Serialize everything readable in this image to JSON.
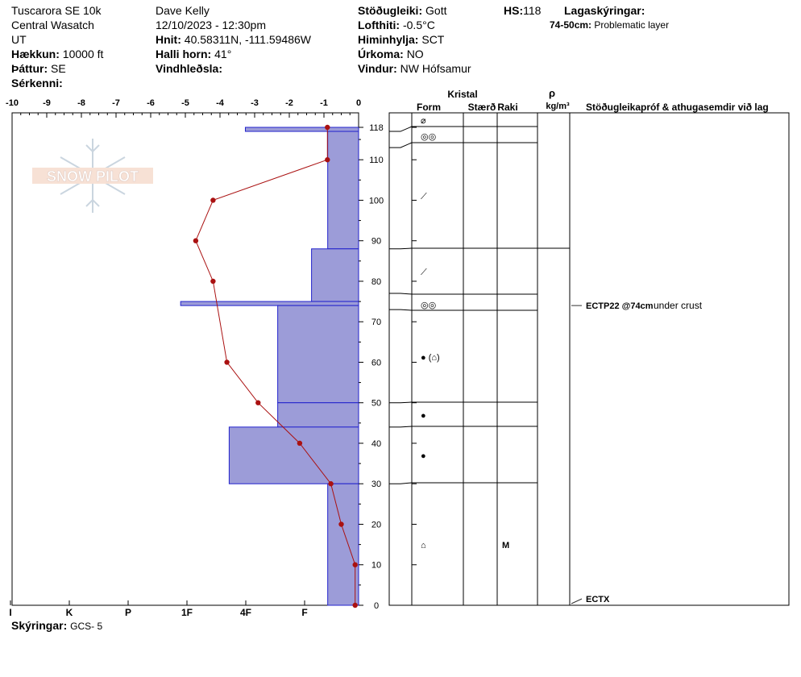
{
  "header": {
    "location": "Tuscarora SE 10k",
    "range": "Central Wasatch",
    "state": "UT",
    "elevation_label": "Hækkun:",
    "elevation": "10000 ft",
    "aspect_label": "Þáttur:",
    "aspect": "SE",
    "features_label": "Sérkenni:",
    "observer": "Dave Kelly",
    "datetime": "12/10/2023 - 12:30pm",
    "coords_label": "Hnit:",
    "coords": "40.58311N, -111.59486W",
    "slope_label": "Halli horn:",
    "slope": "41°",
    "wind_loading_label": "Vindhleðsla:",
    "stability_label": "Stöðugleiki:",
    "stability": "Gott",
    "air_temp_label": "Lofthiti:",
    "air_temp": "-0.5°C",
    "sky_label": "Himinhylja:",
    "sky": "SCT",
    "precip_label": "Úrkoma:",
    "precip": "NO",
    "wind_label": "Vindur:",
    "wind": "NW Hófsamur",
    "hs_label": "HS:",
    "hs": "118",
    "layer_notes_label": "Lagaskýringar:",
    "layer_note_depth": "74-50cm:",
    "layer_note_text": "Problematic layer"
  },
  "footer": {
    "legend_label": "Skýringar:",
    "legend_value": "GCS- 5"
  },
  "colors": {
    "hardness_fill": "#9c9cd8",
    "hardness_stroke": "#2222cc",
    "temp_line": "#aa1111"
  },
  "table_headers": {
    "crystal": "Kristal",
    "form": "Form",
    "size": "Stærð",
    "moisture": "Raki",
    "rho": "ρ",
    "density_unit": "kg/m³",
    "stability_tests": "Stöðugleikapróf & athugasemdir við lag"
  },
  "chart_data": {
    "type": "snow-profile",
    "temp_axis": {
      "ticks": [
        -10,
        -9,
        -8,
        -7,
        -6,
        -5,
        -4,
        -3,
        -2,
        -1,
        0
      ],
      "range": [
        -10,
        0
      ]
    },
    "hardness_axis": {
      "labels": [
        "I",
        "K",
        "P",
        "1F",
        "4F",
        "F"
      ]
    },
    "depth_axis": {
      "range": [
        0,
        118
      ],
      "ticks": [
        0,
        10,
        20,
        30,
        40,
        50,
        60,
        70,
        80,
        90,
        100,
        110,
        118
      ]
    },
    "hs": 118,
    "temperature_profile": [
      {
        "depth": 118,
        "temp": -0.9
      },
      {
        "depth": 110,
        "temp": -0.9
      },
      {
        "depth": 100,
        "temp": -4.2
      },
      {
        "depth": 90,
        "temp": -4.7
      },
      {
        "depth": 80,
        "temp": -4.2
      },
      {
        "depth": 60,
        "temp": -3.8
      },
      {
        "depth": 50,
        "temp": -2.9
      },
      {
        "depth": 40,
        "temp": -1.7
      },
      {
        "depth": 30,
        "temp": -0.8
      },
      {
        "depth": 20,
        "temp": -0.5
      },
      {
        "depth": 10,
        "temp": -0.1
      },
      {
        "depth": 0,
        "temp": -0.1
      }
    ],
    "hardness_layers": [
      {
        "top": 118,
        "bottom": 117,
        "hardness": 3.85
      },
      {
        "top": 117,
        "bottom": 88,
        "hardness": 1.05
      },
      {
        "top": 88,
        "bottom": 75,
        "hardness": 1.6
      },
      {
        "top": 75,
        "bottom": 74,
        "hardness": 6.05
      },
      {
        "top": 74,
        "bottom": 50,
        "hardness": 2.75
      },
      {
        "top": 50,
        "bottom": 44,
        "hardness": 2.75
      },
      {
        "top": 44,
        "bottom": 30,
        "hardness": 4.4
      },
      {
        "top": 30,
        "bottom": 0,
        "hardness": 1.05
      }
    ],
    "layer_boundaries": [
      118,
      117,
      113,
      88,
      77,
      73,
      50,
      44,
      30
    ],
    "grain_rows": [
      {
        "depth": 119.5,
        "symbol": "⌀",
        "moisture": ""
      },
      {
        "depth": 115,
        "symbol": "◎◎",
        "moisture": ""
      },
      {
        "depth": 101,
        "symbol": "⟋",
        "moisture": ""
      },
      {
        "depth": 82,
        "symbol": "⟋",
        "moisture": ""
      },
      {
        "depth": 74.5,
        "symbol": "◎◎",
        "moisture": ""
      },
      {
        "depth": 61,
        "symbol": "● (⌂)",
        "moisture": ""
      },
      {
        "depth": 47,
        "symbol": "●",
        "moisture": ""
      },
      {
        "depth": 37,
        "symbol": "●",
        "moisture": ""
      },
      {
        "depth": 15,
        "symbol": "⌂",
        "moisture": "M"
      }
    ],
    "stability_tests": [
      {
        "depth": 74,
        "code": "ECTP22 @74cm",
        "comment": "under crust"
      },
      {
        "depth": 0,
        "code": "ECTX",
        "comment": ""
      }
    ]
  }
}
